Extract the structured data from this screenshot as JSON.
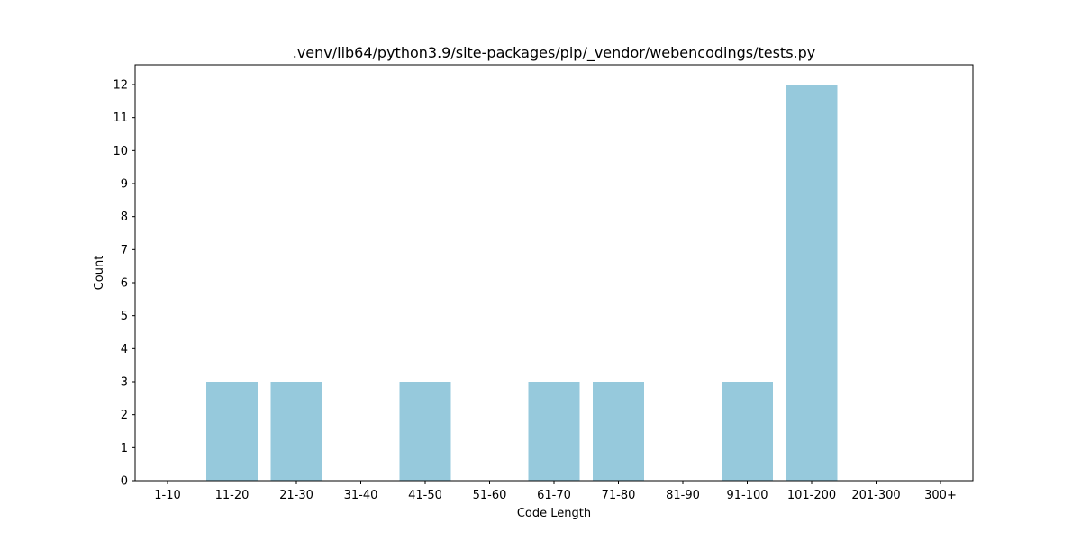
{
  "chart_data": {
    "type": "bar",
    "title": ".venv/lib64/python3.9/site-packages/pip/_vendor/webencodings/tests.py",
    "xlabel": "Code Length",
    "ylabel": "Count",
    "categories": [
      "1-10",
      "11-20",
      "21-30",
      "31-40",
      "41-50",
      "51-60",
      "61-70",
      "71-80",
      "81-90",
      "91-100",
      "101-200",
      "201-300",
      "300+"
    ],
    "values": [
      0,
      3,
      3,
      0,
      3,
      0,
      3,
      3,
      0,
      3,
      12,
      0,
      0
    ],
    "ylim": [
      0,
      12.6
    ],
    "yticks": [
      "0",
      "1",
      "2",
      "3",
      "4",
      "5",
      "6",
      "7",
      "8",
      "9",
      "10",
      "11",
      "12"
    ],
    "bar_color": "#96c9dc",
    "grid": false,
    "legend": "none"
  }
}
